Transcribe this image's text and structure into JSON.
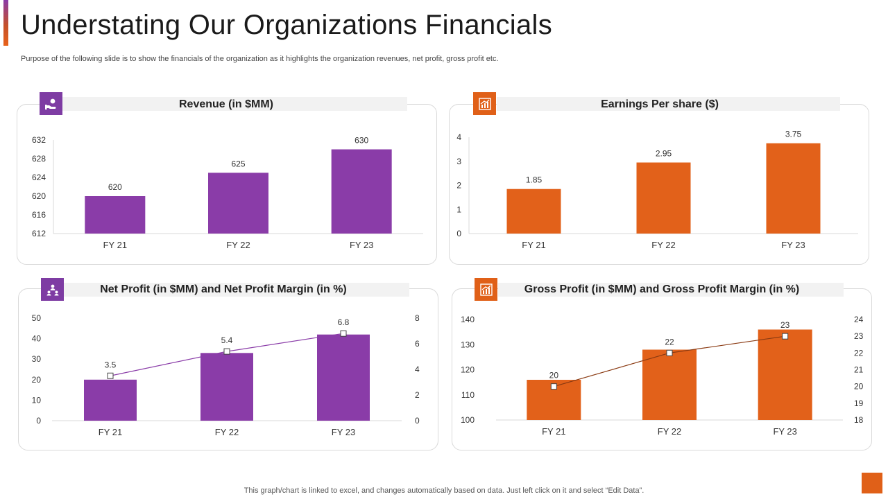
{
  "page": {
    "title": "Understating Our Organizations Financials",
    "subtitle": "Purpose of the following slide is to show the financials of the organization as it highlights the organization revenues, net profit, gross profit etc.",
    "footer": "This graph/chart is linked to excel,  and changes automatically based on data. Just left click on it and select “Edit Data”."
  },
  "colors": {
    "purple": "#8a3ca8",
    "orange": "#e2611a",
    "line_purple": "#8a3ca8",
    "line_brown": "#8a3a12",
    "accent_square": "#e06018"
  },
  "chart_data": [
    {
      "type": "bar",
      "title": "Revenue (in $MM)",
      "icon": "money-hand-icon",
      "categories": [
        "FY 21",
        "FY 22",
        "FY 23"
      ],
      "values": [
        620,
        625,
        630
      ],
      "data_labels": [
        "620",
        "625",
        "630"
      ],
      "ylim": [
        612,
        632
      ],
      "yticks": [
        "612",
        "616",
        "620",
        "624",
        "628",
        "632"
      ],
      "color": "#8a3ca8",
      "grid": false
    },
    {
      "type": "bar",
      "title": "Earnings Per share ($)",
      "icon": "growth-chart-icon",
      "categories": [
        "FY 21",
        "FY 22",
        "FY 23"
      ],
      "values": [
        1.85,
        2.95,
        3.75
      ],
      "data_labels": [
        "1.85",
        "2.95",
        "3.75"
      ],
      "ylim": [
        0,
        4
      ],
      "yticks": [
        "0",
        "1",
        "2",
        "3",
        "4"
      ],
      "color": "#e2611a",
      "grid": false
    },
    {
      "type": "bar",
      "title": "Net Profit (in $MM) and Net Profit Margin (in %)",
      "icon": "team-icon",
      "categories": [
        "FY 21",
        "FY 22",
        "FY 23"
      ],
      "values": [
        20,
        33,
        42
      ],
      "ylim": [
        0,
        50
      ],
      "yticks": [
        "0",
        "10",
        "20",
        "30",
        "40",
        "50"
      ],
      "color": "#8a3ca8",
      "line": {
        "values": [
          3.5,
          5.4,
          6.8
        ],
        "data_labels": [
          "3.5",
          "5.4",
          "6.8"
        ],
        "ylim": [
          0,
          8
        ],
        "yticks": [
          "0",
          "2",
          "4",
          "6",
          "8"
        ],
        "color": "#8a3ca8"
      },
      "grid": false
    },
    {
      "type": "bar",
      "title": "Gross Profit (in $MM) and Gross Profit Margin (in %)",
      "icon": "growth-chart-icon",
      "categories": [
        "FY 21",
        "FY 22",
        "FY 23"
      ],
      "values": [
        116,
        128,
        136
      ],
      "ylim": [
        100,
        140
      ],
      "yticks": [
        "100",
        "110",
        "120",
        "130",
        "140"
      ],
      "color": "#e2611a",
      "line": {
        "values": [
          20,
          22,
          23
        ],
        "data_labels": [
          "20",
          "22",
          "23"
        ],
        "ylim": [
          18,
          24
        ],
        "yticks": [
          "18",
          "19",
          "20",
          "21",
          "22",
          "23",
          "24"
        ],
        "color": "#8a3a12"
      },
      "grid": false
    }
  ]
}
